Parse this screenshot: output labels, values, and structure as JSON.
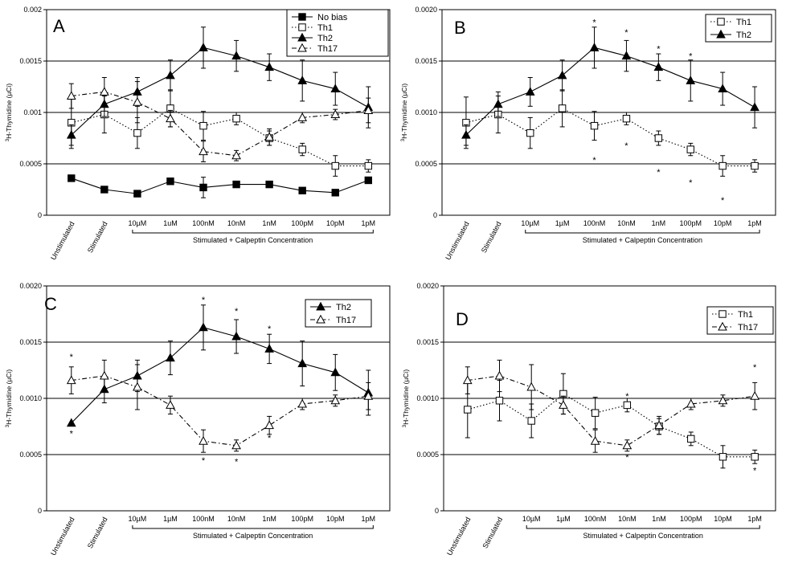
{
  "chart_data": [
    {
      "panel_label": "A",
      "type": "line",
      "ylabel_text": "3H-Thymidine (µCi)",
      "ylabel_sup": "3",
      "ylabel_rest": "H-Thymidine (µCi)",
      "ylim": [
        0,
        0.002
      ],
      "yticks": [
        "0",
        "0.0005",
        "0.001",
        "0.0015",
        "0.002"
      ],
      "grid": true,
      "legend_position": "top-right",
      "categories": [
        "Unstimulated",
        "Stimulated",
        "10µM",
        "1uM",
        "100nM",
        "10nM",
        "1nM",
        "100pM",
        "10pM",
        "1pM"
      ],
      "bracket_label": "Stimulated + Calpeptin Concentration",
      "series": [
        {
          "name": "No bias",
          "marker": "square-filled",
          "line": "solid",
          "values": [
            0.00036,
            0.00025,
            0.00021,
            0.00033,
            0.00027,
            0.0003,
            0.0003,
            0.00024,
            0.00022,
            0.00034
          ],
          "errors": [
            0,
            0,
            0,
            0,
            0.0001,
            0,
            0,
            0,
            0,
            0
          ]
        },
        {
          "name": "Th1",
          "marker": "square-open",
          "line": "dotted",
          "values": [
            0.0009,
            0.00098,
            0.0008,
            0.00104,
            0.00087,
            0.00094,
            0.00075,
            0.00064,
            0.00048,
            0.00048
          ],
          "errors": [
            0.00025,
            0.00018,
            0.00015,
            0.00018,
            0.00014,
            6e-05,
            7e-05,
            6e-05,
            0.0001,
            6e-05
          ]
        },
        {
          "name": "Th2",
          "marker": "triangle-filled",
          "line": "solid",
          "values": [
            0.00078,
            0.00108,
            0.0012,
            0.00136,
            0.00163,
            0.00155,
            0.00144,
            0.00131,
            0.00123,
            0.00105
          ],
          "errors": [
            0.0001,
            0.00012,
            0.00014,
            0.00015,
            0.0002,
            0.00015,
            0.00013,
            0.0002,
            0.00016,
            0.0002
          ]
        },
        {
          "name": "Th17",
          "marker": "triangle-open",
          "line": "dashdot",
          "values": [
            0.00116,
            0.0012,
            0.0011,
            0.00094,
            0.00062,
            0.00058,
            0.00076,
            0.00095,
            0.00098,
            0.00102
          ],
          "errors": [
            0.00012,
            0.00014,
            0.0002,
            8e-05,
            0.0001,
            5e-05,
            8e-05,
            5e-05,
            5e-05,
            0.00012
          ]
        }
      ],
      "asterisks": []
    },
    {
      "panel_label": "B",
      "type": "line",
      "ylabel_text": "3H-Thymidine (µCi)",
      "ylabel_sup": "3",
      "ylabel_rest": "H-Thymidine (µCi)",
      "ylim": [
        0,
        0.002
      ],
      "yticks": [
        "0",
        "0.0005",
        "0.0010",
        "0.0015",
        "0.0020"
      ],
      "grid": true,
      "legend_position": "top-right",
      "categories": [
        "Unstimulated",
        "Stimulated",
        "10µM",
        "1µM",
        "100nM",
        "10nM",
        "1nM",
        "100pM",
        "10pM",
        "1pM"
      ],
      "bracket_label": "Stimulated + Calpeptin Concentration",
      "series": [
        {
          "name": "Th1",
          "marker": "square-open",
          "line": "dotted",
          "values": [
            0.0009,
            0.00098,
            0.0008,
            0.00104,
            0.00087,
            0.00094,
            0.00075,
            0.00064,
            0.00048,
            0.00048
          ],
          "errors": [
            0.00025,
            0.00018,
            0.00015,
            0.00018,
            0.00014,
            6e-05,
            7e-05,
            6e-05,
            0.0001,
            6e-05
          ]
        },
        {
          "name": "Th2",
          "marker": "triangle-filled",
          "line": "solid",
          "values": [
            0.00078,
            0.00108,
            0.0012,
            0.00136,
            0.00163,
            0.00155,
            0.00144,
            0.00131,
            0.00123,
            0.00105
          ],
          "errors": [
            0.0001,
            0.00012,
            0.00014,
            0.00015,
            0.0002,
            0.00015,
            0.00013,
            0.0002,
            0.00016,
            0.0002
          ]
        }
      ],
      "asterisks": [
        {
          "index": 4,
          "value": 0.00188
        },
        {
          "index": 5,
          "value": 0.00178
        },
        {
          "index": 6,
          "value": 0.00162
        },
        {
          "index": 7,
          "value": 0.00155
        },
        {
          "index": 4,
          "value": 0.00054
        },
        {
          "index": 5,
          "value": 0.00068
        },
        {
          "index": 6,
          "value": 0.00042
        },
        {
          "index": 7,
          "value": 0.00032
        },
        {
          "index": 8,
          "value": 0.00015
        }
      ]
    },
    {
      "panel_label": "C",
      "type": "line",
      "ylabel_text": "3H-Thymidine (µCi)",
      "ylabel_sup": "3",
      "ylabel_rest": "H-Thymidine (µCi)",
      "ylim": [
        0,
        0.002
      ],
      "yticks": [
        "0",
        "0.0005",
        "0.0010",
        "0.0015",
        "0.0020"
      ],
      "grid": true,
      "legend_position": "top-right",
      "categories": [
        "Unstimulated",
        "Stimulated",
        "10µM",
        "1µM",
        "100nM",
        "10nM",
        "1nM",
        "100pM",
        "10pM",
        "1pM"
      ],
      "bracket_label": "Stimulated + Calpeptin Concentration",
      "series": [
        {
          "name": "Th2",
          "marker": "triangle-filled",
          "line": "solid",
          "values": [
            0.00078,
            0.00108,
            0.0012,
            0.00136,
            0.00163,
            0.00155,
            0.00144,
            0.00131,
            0.00123,
            0.00105
          ],
          "errors": [
            0,
            0.00012,
            0.00014,
            0.00015,
            0.0002,
            0.00015,
            0.00013,
            0.0002,
            0.00016,
            0.0002
          ]
        },
        {
          "name": "Th17",
          "marker": "triangle-open",
          "line": "dashdot",
          "values": [
            0.00116,
            0.0012,
            0.0011,
            0.00094,
            0.00062,
            0.00058,
            0.00076,
            0.00095,
            0.00098,
            0.00102
          ],
          "errors": [
            0.00012,
            0.00014,
            0.0002,
            8e-05,
            0.0001,
            5e-05,
            8e-05,
            5e-05,
            5e-05,
            0.00012
          ]
        }
      ],
      "asterisks": [
        {
          "index": 0,
          "value": 0.00137
        },
        {
          "index": 0,
          "value": 0.00069
        },
        {
          "index": 4,
          "value": 0.00188
        },
        {
          "index": 5,
          "value": 0.00178
        },
        {
          "index": 6,
          "value": 0.00162
        },
        {
          "index": 4,
          "value": 0.00045
        },
        {
          "index": 5,
          "value": 0.00044
        },
        {
          "index": 6,
          "value": 0.00065
        }
      ]
    },
    {
      "panel_label": "D",
      "type": "line",
      "ylabel_text": "3H-Thymidine (µCi)",
      "ylabel_sup": "3",
      "ylabel_rest": "H-Thymidine (µCi)",
      "ylim": [
        0,
        0.002
      ],
      "yticks": [
        "0",
        "0.0005",
        "0.0010",
        "0.0015",
        "0.0020"
      ],
      "grid": true,
      "legend_position": "top-right",
      "categories": [
        "Unstimulated",
        "Stimulated",
        "10µM",
        "1µM",
        "100nM",
        "10nM",
        "1nM",
        "100pM",
        "10pM",
        "1pM"
      ],
      "bracket_label": "Stimulated + Calpeptin Concentration",
      "series": [
        {
          "name": "Th1",
          "marker": "square-open",
          "line": "dotted",
          "values": [
            0.0009,
            0.00098,
            0.0008,
            0.00104,
            0.00087,
            0.00094,
            0.00075,
            0.00064,
            0.00048,
            0.00048
          ],
          "errors": [
            0.00025,
            0.00018,
            0.00015,
            0.00018,
            0.00014,
            6e-05,
            7e-05,
            6e-05,
            0.0001,
            6e-05
          ]
        },
        {
          "name": "Th17",
          "marker": "triangle-open",
          "line": "dashdot",
          "values": [
            0.00116,
            0.0012,
            0.0011,
            0.00094,
            0.00062,
            0.00058,
            0.00076,
            0.00095,
            0.00098,
            0.00102
          ],
          "errors": [
            0.00012,
            0.00014,
            0.0002,
            8e-05,
            0.0001,
            5e-05,
            8e-05,
            5e-05,
            5e-05,
            0.00012
          ]
        }
      ],
      "asterisks": [
        {
          "index": 5,
          "value": 0.00102
        },
        {
          "index": 5,
          "value": 0.00048
        },
        {
          "index": 9,
          "value": 0.00128
        },
        {
          "index": 9,
          "value": 0.00036
        }
      ]
    }
  ]
}
